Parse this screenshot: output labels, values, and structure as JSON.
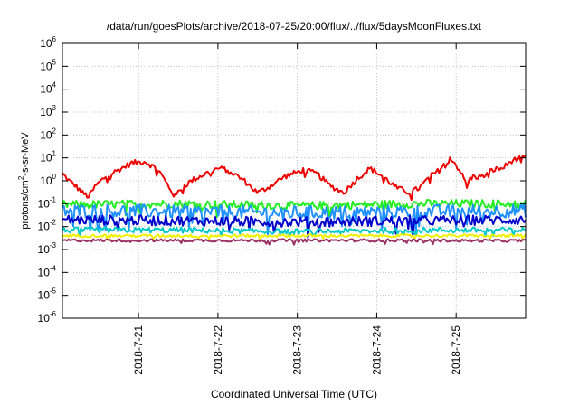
{
  "chart_data": {
    "type": "line",
    "title": "/data/run/goesPlots/archive/2018-07-25/20:00/flux/../flux/5daysMoonFluxes.txt",
    "xlabel": "Coordinated Universal Time (UTC)",
    "ylabel": {
      "base": "protons/cm",
      "sup": "2",
      "rest": "-s-sr-MeV"
    },
    "yscale": "log",
    "ylim_exp": [
      -6,
      6
    ],
    "y_tick_exponents": [
      6,
      5,
      4,
      3,
      2,
      1,
      0,
      -1,
      -2,
      -3,
      -4,
      -5,
      -6
    ],
    "y_tick_base": "10",
    "xlim": [
      "2018-07-20T01:00",
      "2018-07-25T21:00"
    ],
    "x_ticks": [
      {
        "t": "2018-07-21T00:00",
        "label": "2018-7-21"
      },
      {
        "t": "2018-07-22T00:00",
        "label": "2018-7-22"
      },
      {
        "t": "2018-07-23T00:00",
        "label": "2018-7-23"
      },
      {
        "t": "2018-07-24T00:00",
        "label": "2018-7-24"
      },
      {
        "t": "2018-07-25T00:00",
        "label": "2018-7-25"
      }
    ],
    "grid": true,
    "legend": "none",
    "series": [
      {
        "color": "#ee0000",
        "noise": 0.12,
        "points": [
          [
            "2018-07-20T01:00",
            2.0
          ],
          [
            "2018-07-20T03:00",
            1.0
          ],
          [
            "2018-07-20T05:00",
            0.6
          ],
          [
            "2018-07-20T07:00",
            0.3
          ],
          [
            "2018-07-20T09:00",
            0.2
          ],
          [
            "2018-07-20T11:00",
            0.6
          ],
          [
            "2018-07-20T14:00",
            1.5
          ],
          [
            "2018-07-20T18:00",
            3.0
          ],
          [
            "2018-07-20T22:00",
            6.0
          ],
          [
            "2018-07-21T02:00",
            7.0
          ],
          [
            "2018-07-21T06:00",
            3.0
          ],
          [
            "2018-07-21T09:00",
            0.6
          ],
          [
            "2018-07-21T11:00",
            0.2
          ],
          [
            "2018-07-21T13:00",
            0.5
          ],
          [
            "2018-07-21T16:00",
            1.0
          ],
          [
            "2018-07-21T20:00",
            2.0
          ],
          [
            "2018-07-22T00:00",
            3.5
          ],
          [
            "2018-07-22T03:00",
            3.0
          ],
          [
            "2018-07-22T08:00",
            1.0
          ],
          [
            "2018-07-22T12:00",
            0.3
          ],
          [
            "2018-07-22T15:00",
            0.5
          ],
          [
            "2018-07-22T20:00",
            1.5
          ],
          [
            "2018-07-23T02:00",
            3.0
          ],
          [
            "2018-07-23T06:00",
            2.0
          ],
          [
            "2018-07-23T10:00",
            0.6
          ],
          [
            "2018-07-23T14:00",
            0.3
          ],
          [
            "2018-07-23T18:00",
            1.2
          ],
          [
            "2018-07-23T22:00",
            3.5
          ],
          [
            "2018-07-24T02:00",
            1.5
          ],
          [
            "2018-07-24T06:00",
            0.5
          ],
          [
            "2018-07-24T10:00",
            0.3
          ],
          [
            "2018-07-24T13:00",
            0.5
          ],
          [
            "2018-07-24T16:00",
            1.5
          ],
          [
            "2018-07-24T19:00",
            3.0
          ],
          [
            "2018-07-24T22:00",
            12.0
          ],
          [
            "2018-07-25T01:00",
            3.0
          ],
          [
            "2018-07-25T03:00",
            0.8
          ],
          [
            "2018-07-25T05:00",
            1.5
          ],
          [
            "2018-07-25T08:00",
            1.5
          ],
          [
            "2018-07-25T11:00",
            3.0
          ],
          [
            "2018-07-25T14:00",
            3.5
          ],
          [
            "2018-07-25T17:00",
            8.0
          ],
          [
            "2018-07-25T21:00",
            10.0
          ]
        ]
      },
      {
        "color": "#22ee22",
        "noise": 0.18,
        "points": [
          [
            "2018-07-20T01:00",
            0.09
          ],
          [
            "2018-07-21T12:00",
            0.1
          ],
          [
            "2018-07-23T00:00",
            0.08
          ],
          [
            "2018-07-24T12:00",
            0.1
          ],
          [
            "2018-07-25T21:00",
            0.1
          ]
        ]
      },
      {
        "color": "#1e90ff",
        "noise": 0.3,
        "points": [
          [
            "2018-07-20T01:00",
            0.05
          ],
          [
            "2018-07-21T12:00",
            0.045
          ],
          [
            "2018-07-23T00:00",
            0.04
          ],
          [
            "2018-07-24T12:00",
            0.045
          ],
          [
            "2018-07-25T21:00",
            0.05
          ]
        ]
      },
      {
        "color": "#0000cc",
        "noise": 0.22,
        "points": [
          [
            "2018-07-20T01:00",
            0.02
          ],
          [
            "2018-07-21T12:00",
            0.018
          ],
          [
            "2018-07-23T00:00",
            0.016
          ],
          [
            "2018-07-24T12:00",
            0.018
          ],
          [
            "2018-07-25T21:00",
            0.02
          ]
        ]
      },
      {
        "color": "#00c8c8",
        "noise": 0.12,
        "points": [
          [
            "2018-07-20T01:00",
            0.007
          ],
          [
            "2018-07-21T12:00",
            0.007
          ],
          [
            "2018-07-23T00:00",
            0.006
          ],
          [
            "2018-07-24T12:00",
            0.007
          ],
          [
            "2018-07-25T21:00",
            0.007
          ]
        ]
      },
      {
        "color": "#f0f000",
        "noise": 0.06,
        "points": [
          [
            "2018-07-20T01:00",
            0.004
          ],
          [
            "2018-07-21T12:00",
            0.004
          ],
          [
            "2018-07-23T00:00",
            0.004
          ],
          [
            "2018-07-24T12:00",
            0.004
          ],
          [
            "2018-07-25T21:00",
            0.004
          ]
        ]
      },
      {
        "color": "#993366",
        "noise": 0.06,
        "points": [
          [
            "2018-07-20T01:00",
            0.0025
          ],
          [
            "2018-07-21T12:00",
            0.0025
          ],
          [
            "2018-07-23T00:00",
            0.0025
          ],
          [
            "2018-07-24T12:00",
            0.0025
          ],
          [
            "2018-07-25T21:00",
            0.0024
          ]
        ]
      }
    ]
  }
}
